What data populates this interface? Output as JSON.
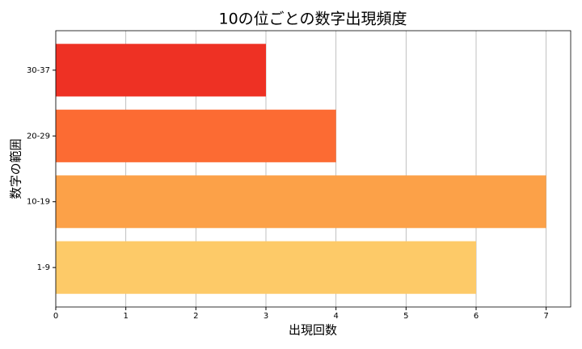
{
  "chart_data": {
    "type": "barh",
    "title": "10の位ごとの数字出現頻度",
    "x_label": "出現回数",
    "y_label": "数字の範囲",
    "categories": [
      "1-9",
      "10-19",
      "20-29",
      "30-37"
    ],
    "values": [
      6,
      7,
      4,
      3
    ],
    "colors": [
      "#fdca68",
      "#fca148",
      "#fc6b33",
      "#ee3124"
    ],
    "xlim": [
      0,
      7.35
    ],
    "xticks": [
      0,
      1,
      2,
      3,
      4,
      5,
      6,
      7
    ],
    "grid": true
  }
}
